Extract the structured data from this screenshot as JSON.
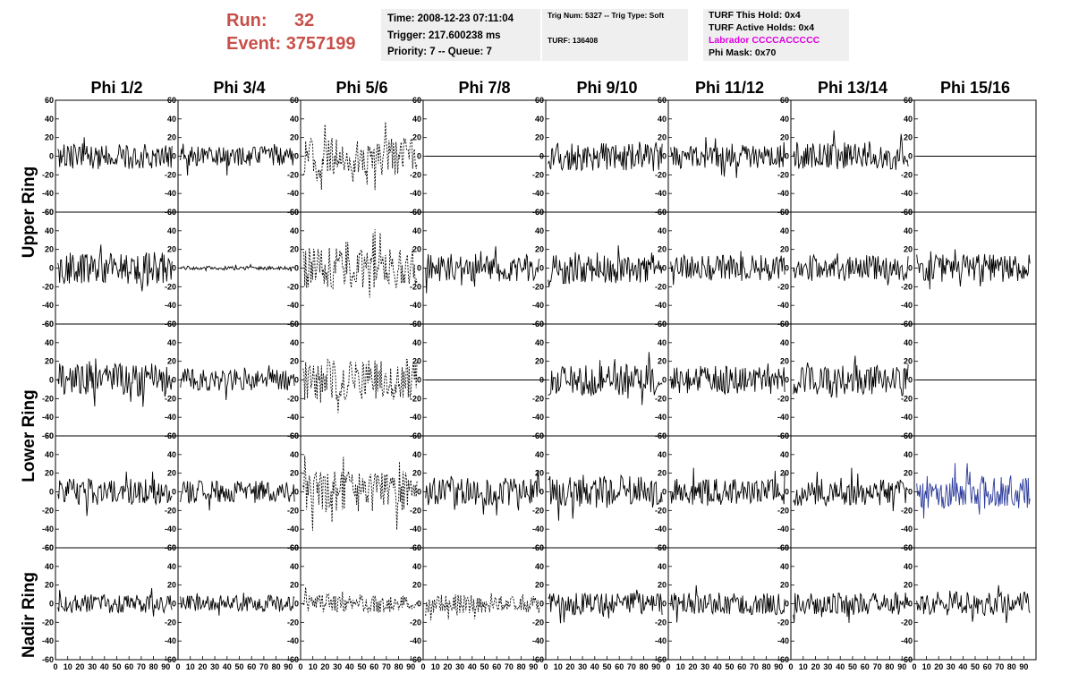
{
  "header": {
    "run_label": "Run:",
    "run_value": "32",
    "event_label": "Event:",
    "event_value": "3757199",
    "time_line": "Time: 2008-12-23 07:11:04",
    "trigger_line": "Trigger: 217.600238 ms",
    "priority_line": "Priority: 7 -- Queue: 7",
    "trig_num_line": "Trig Num: 5327 -- Trig Type: Soft",
    "turf_line": "TURF: 136408",
    "turf_this_hold": "TURF This Hold: 0x4",
    "turf_active_holds": "TURF Active Holds: 0x4",
    "labrador_line": "Labrador CCCCACCCCC",
    "phi_mask_line": "Phi Mask: 0x70"
  },
  "chart_data": {
    "type": "line",
    "columns": [
      "Phi 1/2",
      "Phi 3/4",
      "Phi 5/6",
      "Phi 7/8",
      "Phi 9/10",
      "Phi 11/12",
      "Phi 13/14",
      "Phi 15/16"
    ],
    "row_groups": [
      "Upper Ring",
      "Lower Ring",
      "Nadir Ring"
    ],
    "rows": 5,
    "xlim": [
      0,
      100
    ],
    "ylim": [
      -60,
      60
    ],
    "x_ticks": [
      0,
      10,
      20,
      30,
      40,
      50,
      60,
      70,
      80,
      90
    ],
    "y_ticks": [
      -60,
      -40,
      -20,
      0,
      20,
      40,
      60
    ],
    "colors": {
      "trace": "#000000",
      "highlight": "#2a3a9a",
      "header_red": "#c8504a",
      "magenta": "#e000e0"
    },
    "panels": [
      [
        {
          "amp": 14,
          "style": "solid"
        },
        {
          "amp": 11,
          "style": "solid"
        },
        {
          "amp": 20,
          "style": "dashed"
        },
        {
          "amp": 0,
          "style": "flat"
        },
        {
          "amp": 16,
          "style": "solid"
        },
        {
          "amp": 13,
          "style": "solid"
        },
        {
          "amp": 15,
          "style": "solid"
        },
        {
          "amp": 0,
          "style": "flat"
        }
      ],
      [
        {
          "amp": 17,
          "style": "solid"
        },
        {
          "amp": 2,
          "style": "solid"
        },
        {
          "amp": 22,
          "style": "dashed"
        },
        {
          "amp": 15,
          "style": "solid"
        },
        {
          "amp": 17,
          "style": "solid"
        },
        {
          "amp": 14,
          "style": "solid"
        },
        {
          "amp": 14,
          "style": "solid"
        },
        {
          "amp": 15,
          "style": "solid"
        }
      ],
      [
        {
          "amp": 18,
          "style": "solid"
        },
        {
          "amp": 12,
          "style": "solid"
        },
        {
          "amp": 22,
          "style": "dashed"
        },
        {
          "amp": 0,
          "style": "flat"
        },
        {
          "amp": 17,
          "style": "solid"
        },
        {
          "amp": 15,
          "style": "solid"
        },
        {
          "amp": 16,
          "style": "solid"
        },
        {
          "amp": 0,
          "style": "flat"
        }
      ],
      [
        {
          "amp": 14,
          "style": "solid"
        },
        {
          "amp": 12,
          "style": "solid"
        },
        {
          "amp": 22,
          "style": "dashed"
        },
        {
          "amp": 15,
          "style": "solid"
        },
        {
          "amp": 17,
          "style": "solid"
        },
        {
          "amp": 14,
          "style": "solid"
        },
        {
          "amp": 15,
          "style": "solid"
        },
        {
          "amp": 18,
          "style": "blue"
        }
      ],
      [
        {
          "amp": 10,
          "style": "solid"
        },
        {
          "amp": 9,
          "style": "solid"
        },
        {
          "amp": 10,
          "style": "dashed"
        },
        {
          "amp": 10,
          "style": "dashed"
        },
        {
          "amp": 12,
          "style": "solid"
        },
        {
          "amp": 12,
          "style": "solid"
        },
        {
          "amp": 12,
          "style": "solid"
        },
        {
          "amp": 13,
          "style": "solid"
        }
      ]
    ]
  }
}
